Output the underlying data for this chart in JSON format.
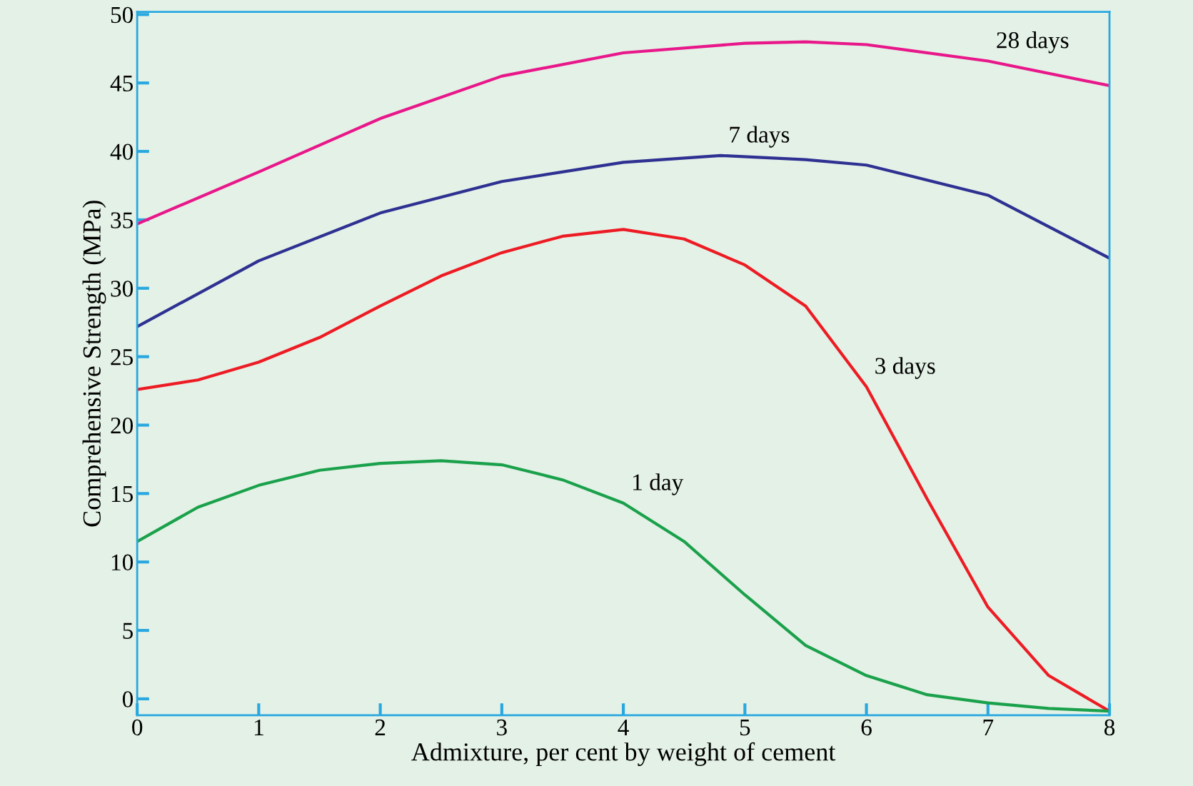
{
  "chart_data": {
    "type": "line",
    "xlabel": "Admixture, per cent by weight of cement",
    "ylabel": "Comprehensive Strength (MPa)",
    "xlim": [
      0,
      8
    ],
    "ylim": [
      -1.2,
      50.2
    ],
    "xticks": [
      0,
      1,
      2,
      3,
      4,
      5,
      6,
      7,
      8
    ],
    "yticks": [
      0,
      5,
      10,
      15,
      20,
      25,
      30,
      35,
      40,
      45,
      50
    ],
    "grid": false,
    "legend": false,
    "marker": "none",
    "line_style": "solid",
    "series": [
      {
        "color": "#e8178a",
        "x": [
          0,
          1,
          2,
          3,
          4,
          5,
          5.5,
          6,
          7,
          8
        ],
        "values": [
          34.7,
          38.5,
          42.4,
          45.5,
          47.2,
          47.9,
          48,
          47.8,
          46.6,
          44.8
        ]
      },
      {
        "color": "#2e3192",
        "x": [
          0,
          1,
          2,
          3,
          4,
          4.8,
          5.5,
          6,
          7,
          8
        ],
        "values": [
          27.2,
          32,
          35.5,
          37.8,
          39.2,
          39.7,
          39.4,
          39,
          36.8,
          32.2
        ]
      },
      {
        "color": "#ed1c24",
        "x": [
          0,
          0.5,
          1,
          1.5,
          2,
          2.5,
          3,
          3.5,
          4,
          4.5,
          5,
          5.5,
          6,
          6.5,
          7,
          7.5,
          8
        ],
        "values": [
          22.6,
          23.3,
          24.6,
          26.4,
          28.7,
          30.9,
          32.6,
          33.8,
          34.3,
          33.6,
          31.7,
          28.7,
          22.8,
          14.6,
          6.7,
          1.7,
          -0.9
        ]
      },
      {
        "color": "#1aa14b",
        "x": [
          0,
          0.5,
          1,
          1.5,
          2,
          2.5,
          3,
          3.5,
          4,
          4.5,
          5,
          5.5,
          6,
          6.5,
          7,
          7.5,
          8
        ],
        "values": [
          11.5,
          14,
          15.6,
          16.7,
          17.2,
          17.4,
          17.1,
          16,
          14.3,
          11.5,
          7.6,
          3.9,
          1.7,
          0.3,
          -0.3,
          -0.7,
          -0.9
        ]
      }
    ],
    "annotations": [
      {
        "text": "28 days",
        "x": 7,
        "y": 46.6
      },
      {
        "text": "7 days",
        "x": 4.8,
        "y": 39.7
      },
      {
        "text": "3 days",
        "x": 6,
        "y": 22.8
      },
      {
        "text": "1 day",
        "x": 4,
        "y": 14.3
      }
    ]
  }
}
